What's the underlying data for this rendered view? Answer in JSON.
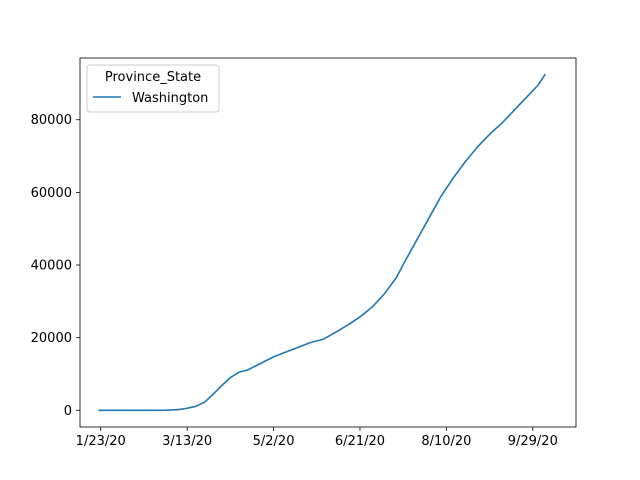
{
  "chart_data": {
    "type": "line",
    "title": "",
    "xlabel": "",
    "ylabel": "",
    "x_tick_labels": [
      "1/23/20",
      "3/13/20",
      "5/2/20",
      "6/21/20",
      "8/10/20",
      "9/29/20"
    ],
    "y_ticks": [
      0,
      20000,
      40000,
      60000,
      80000
    ],
    "y_tick_labels": [
      "0",
      "20000",
      "40000",
      "60000",
      "80000"
    ],
    "xlim": [
      "2020-01-11",
      "2020-10-24"
    ],
    "ylim": [
      -4600,
      97000
    ],
    "grid": false,
    "legend": {
      "title": "Province_State",
      "placement": "top-left"
    },
    "series": [
      {
        "name": "Washington",
        "color": "#1f77b4",
        "points": [
          [
            "2020-01-22",
            0
          ],
          [
            "2020-02-20",
            0
          ],
          [
            "2020-03-01",
            40
          ],
          [
            "2020-03-08",
            200
          ],
          [
            "2020-03-13",
            560
          ],
          [
            "2020-03-18",
            1100
          ],
          [
            "2020-03-23",
            2200
          ],
          [
            "2020-03-28",
            4400
          ],
          [
            "2020-04-02",
            6800
          ],
          [
            "2020-04-07",
            9000
          ],
          [
            "2020-04-12",
            10500
          ],
          [
            "2020-04-17",
            11100
          ],
          [
            "2020-04-22",
            12300
          ],
          [
            "2020-04-27",
            13500
          ],
          [
            "2020-05-02",
            14700
          ],
          [
            "2020-05-09",
            16000
          ],
          [
            "2020-05-16",
            17300
          ],
          [
            "2020-05-23",
            18600
          ],
          [
            "2020-05-31",
            19600
          ],
          [
            "2020-06-07",
            21500
          ],
          [
            "2020-06-14",
            23500
          ],
          [
            "2020-06-21",
            25700
          ],
          [
            "2020-06-28",
            28400
          ],
          [
            "2020-07-05",
            32000
          ],
          [
            "2020-07-12",
            36500
          ],
          [
            "2020-07-17",
            41000
          ],
          [
            "2020-07-24",
            47000
          ],
          [
            "2020-07-31",
            53000
          ],
          [
            "2020-08-07",
            59000
          ],
          [
            "2020-08-14",
            64000
          ],
          [
            "2020-08-21",
            68500
          ],
          [
            "2020-08-28",
            72500
          ],
          [
            "2020-09-04",
            76000
          ],
          [
            "2020-09-11",
            79000
          ],
          [
            "2020-09-18",
            82500
          ],
          [
            "2020-09-25",
            86000
          ],
          [
            "2020-10-02",
            89500
          ],
          [
            "2020-10-06",
            92400
          ]
        ]
      }
    ]
  }
}
